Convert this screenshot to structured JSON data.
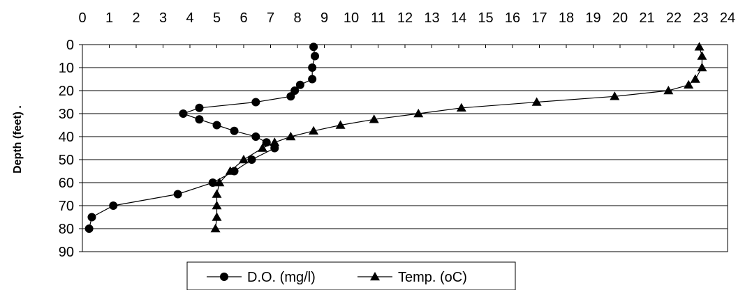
{
  "chart_data": {
    "type": "line",
    "title": "",
    "xlabel": "",
    "ylabel": "Depth (feet) .",
    "x_axis_position": "top",
    "y_axis_inverted": true,
    "xlim": [
      0,
      24
    ],
    "ylim": [
      0,
      90
    ],
    "x_ticks": [
      0,
      1,
      2,
      3,
      4,
      5,
      6,
      7,
      8,
      9,
      10,
      11,
      12,
      13,
      14,
      15,
      16,
      17,
      18,
      19,
      20,
      21,
      22,
      23,
      24
    ],
    "y_ticks": [
      0,
      10,
      20,
      30,
      40,
      50,
      60,
      70,
      80,
      90
    ],
    "grid": "horizontal",
    "legend_position": "bottom",
    "colors": {
      "line": "#000000",
      "grid": "#000000",
      "background": "#ffffff"
    },
    "series": [
      {
        "name": "D.O. (mg/l)",
        "marker": "circle",
        "points": [
          [
            8.6,
            1
          ],
          [
            8.65,
            5
          ],
          [
            8.55,
            10
          ],
          [
            8.55,
            15
          ],
          [
            8.1,
            17.5
          ],
          [
            7.9,
            20
          ],
          [
            7.75,
            22.5
          ],
          [
            6.45,
            25
          ],
          [
            4.35,
            27.5
          ],
          [
            3.75,
            30
          ],
          [
            4.35,
            32.5
          ],
          [
            5.0,
            35
          ],
          [
            5.65,
            37.5
          ],
          [
            6.45,
            40
          ],
          [
            6.85,
            42.5
          ],
          [
            7.15,
            45
          ],
          [
            6.3,
            50
          ],
          [
            5.65,
            55
          ],
          [
            4.85,
            60
          ],
          [
            3.55,
            65
          ],
          [
            1.15,
            70
          ],
          [
            0.35,
            75
          ],
          [
            0.25,
            80
          ]
        ]
      },
      {
        "name": "Temp. (oC)",
        "marker": "triangle",
        "points": [
          [
            22.95,
            1
          ],
          [
            23.05,
            5
          ],
          [
            23.05,
            10
          ],
          [
            22.8,
            15
          ],
          [
            22.55,
            17.5
          ],
          [
            21.8,
            20
          ],
          [
            19.8,
            22.5
          ],
          [
            16.9,
            25
          ],
          [
            14.1,
            27.5
          ],
          [
            12.5,
            30
          ],
          [
            10.85,
            32.5
          ],
          [
            9.6,
            35
          ],
          [
            8.6,
            37.5
          ],
          [
            7.75,
            40
          ],
          [
            7.15,
            42.5
          ],
          [
            6.7,
            45
          ],
          [
            6.0,
            50
          ],
          [
            5.5,
            55
          ],
          [
            5.1,
            60
          ],
          [
            5.0,
            65
          ],
          [
            5.0,
            70
          ],
          [
            5.0,
            75
          ],
          [
            4.95,
            80
          ]
        ]
      }
    ]
  }
}
